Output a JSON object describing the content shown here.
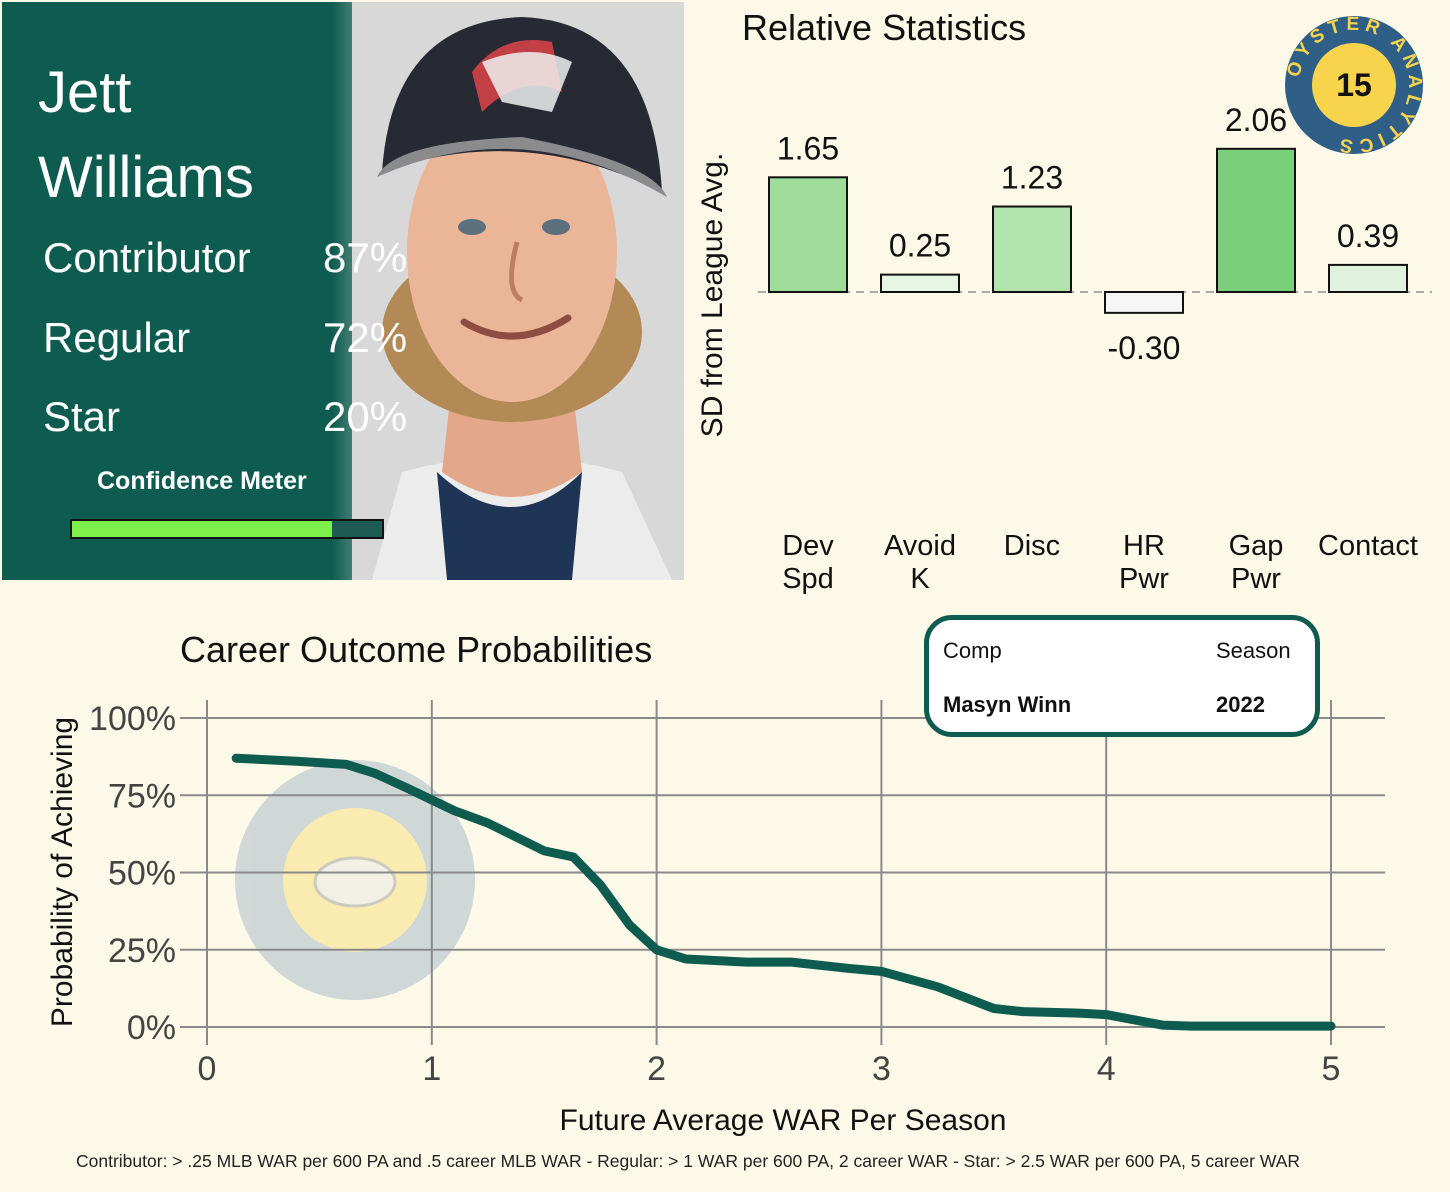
{
  "player": {
    "first_name": "Jett",
    "last_name": "Williams",
    "rows": [
      {
        "label": "Contributor",
        "value": "87%"
      },
      {
        "label": "Regular",
        "value": "72%"
      },
      {
        "label": "Star",
        "value": "20%"
      }
    ],
    "confidence_label": "Confidence Meter",
    "confidence_level": 0.84
  },
  "logo": {
    "rank": "15",
    "ring_text": "OYSTER ANALYTICS"
  },
  "comp": {
    "comp_header": "Comp",
    "season_header": "Season",
    "comp_name": "Masyn Winn",
    "season": "2022"
  },
  "footnote": "Contributor: > .25 MLB WAR per 600 PA and .5 career MLB WAR - Regular: > 1 WAR per 600 PA, 2 career WAR - Star: > 2.5 WAR per 600 PA, 5 career WAR",
  "colors": {
    "card_bg": "#0e5c4f",
    "meter_fill": "#7ef04c",
    "line": "#0e5c4f",
    "background": "#fdf9e8"
  },
  "chart_data": [
    {
      "type": "bar",
      "title": "Relative Statistics",
      "ylabel": "SD from League Avg.",
      "categories": [
        "Dev\nSpd",
        "Avoid\nK",
        "Disc",
        "HR\nPwr",
        "Gap\nPwr",
        "Contact"
      ],
      "values": [
        1.65,
        0.25,
        1.23,
        -0.3,
        2.06,
        0.39
      ],
      "labels": [
        "1.65",
        "0.25",
        "1.23",
        "-0.30",
        "2.06",
        "0.39"
      ],
      "colors": [
        "#9fdb99",
        "#e6f5e4",
        "#b2e3ad",
        "#f6f6f6",
        "#7ccf7a",
        "#e0f2de"
      ],
      "baseline": 0,
      "ylim": [
        -0.9,
        2.35
      ]
    },
    {
      "type": "line",
      "title": "Career Outcome Probabilities",
      "xlabel": "Future Average WAR Per Season",
      "ylabel": "Probability of Achieving",
      "xlim": [
        0,
        5
      ],
      "ylim": [
        0,
        100
      ],
      "x_ticks": [
        "0",
        "1",
        "2",
        "3",
        "4",
        "5"
      ],
      "y_ticks": [
        "0%",
        "25%",
        "50%",
        "75%",
        "100%"
      ],
      "grid": true,
      "x": [
        0.13,
        0.4,
        0.62,
        0.75,
        0.9,
        1.1,
        1.25,
        1.5,
        1.63,
        1.75,
        1.88,
        2.0,
        2.13,
        2.4,
        2.6,
        2.85,
        3.0,
        3.25,
        3.5,
        3.63,
        3.88,
        4.0,
        4.25,
        4.38,
        5.0
      ],
      "y": [
        87,
        86,
        85,
        82,
        77,
        70,
        66,
        57,
        55,
        46,
        33,
        25,
        22,
        21,
        21,
        19,
        18,
        13,
        6,
        5,
        4.5,
        4,
        0.6,
        0.3,
        0.3
      ]
    }
  ]
}
